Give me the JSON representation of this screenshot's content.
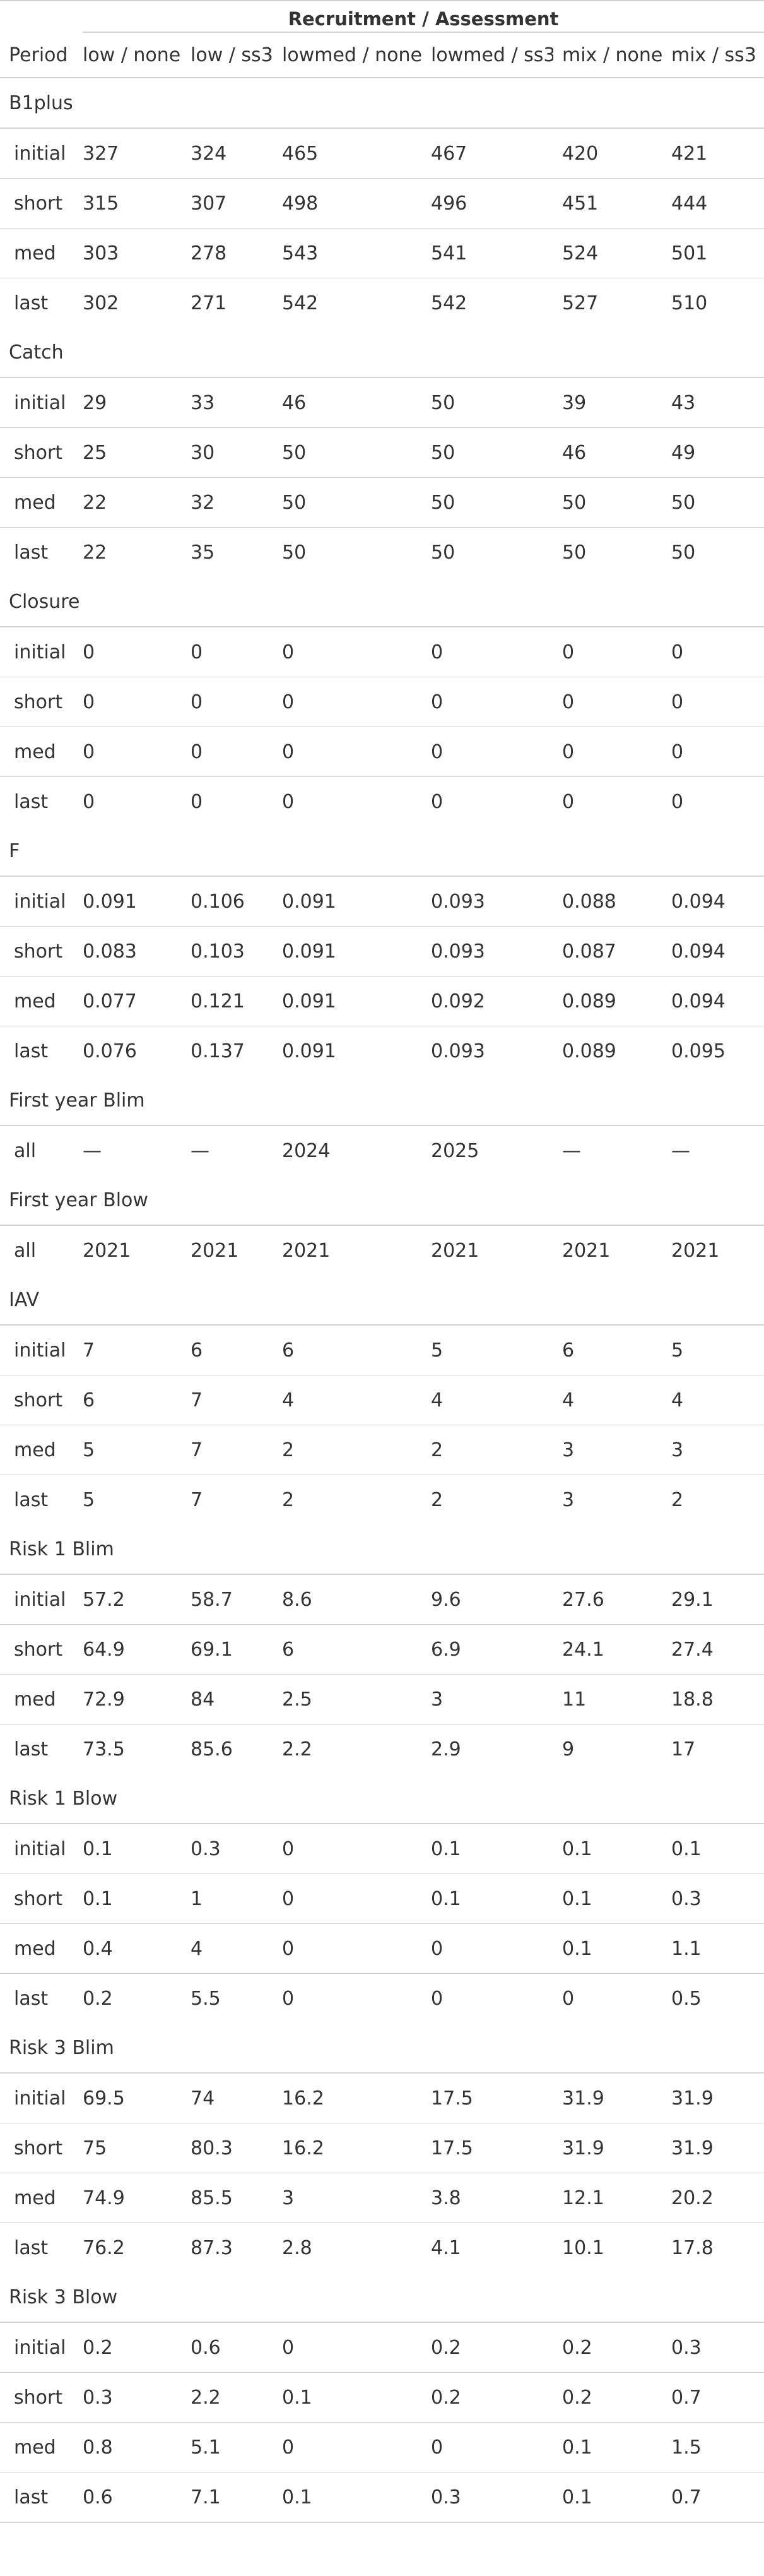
{
  "table": {
    "spanner": "Recruitment / Assessment",
    "columns": [
      "Period",
      "low / none",
      "low / ss3",
      "lowmed / none",
      "lowmed / ss3",
      "mix / none",
      "mix / ss3"
    ],
    "groups": [
      {
        "label": "B1plus",
        "rows": [
          [
            "initial",
            "327",
            "324",
            "465",
            "467",
            "420",
            "421"
          ],
          [
            "short",
            "315",
            "307",
            "498",
            "496",
            "451",
            "444"
          ],
          [
            "med",
            "303",
            "278",
            "543",
            "541",
            "524",
            "501"
          ],
          [
            "last",
            "302",
            "271",
            "542",
            "542",
            "527",
            "510"
          ]
        ]
      },
      {
        "label": "Catch",
        "rows": [
          [
            "initial",
            "29",
            "33",
            "46",
            "50",
            "39",
            "43"
          ],
          [
            "short",
            "25",
            "30",
            "50",
            "50",
            "46",
            "49"
          ],
          [
            "med",
            "22",
            "32",
            "50",
            "50",
            "50",
            "50"
          ],
          [
            "last",
            "22",
            "35",
            "50",
            "50",
            "50",
            "50"
          ]
        ]
      },
      {
        "label": "Closure",
        "rows": [
          [
            "initial",
            "0",
            "0",
            "0",
            "0",
            "0",
            "0"
          ],
          [
            "short",
            "0",
            "0",
            "0",
            "0",
            "0",
            "0"
          ],
          [
            "med",
            "0",
            "0",
            "0",
            "0",
            "0",
            "0"
          ],
          [
            "last",
            "0",
            "0",
            "0",
            "0",
            "0",
            "0"
          ]
        ]
      },
      {
        "label": "F",
        "rows": [
          [
            "initial",
            "0.091",
            "0.106",
            "0.091",
            "0.093",
            "0.088",
            "0.094"
          ],
          [
            "short",
            "0.083",
            "0.103",
            "0.091",
            "0.093",
            "0.087",
            "0.094"
          ],
          [
            "med",
            "0.077",
            "0.121",
            "0.091",
            "0.092",
            "0.089",
            "0.094"
          ],
          [
            "last",
            "0.076",
            "0.137",
            "0.091",
            "0.093",
            "0.089",
            "0.095"
          ]
        ]
      },
      {
        "label": "First year Blim",
        "rows": [
          [
            "all",
            "—",
            "—",
            "2024",
            "2025",
            "—",
            "—"
          ]
        ]
      },
      {
        "label": "First year Blow",
        "rows": [
          [
            "all",
            "2021",
            "2021",
            "2021",
            "2021",
            "2021",
            "2021"
          ]
        ]
      },
      {
        "label": "IAV",
        "rows": [
          [
            "initial",
            "7",
            "6",
            "6",
            "5",
            "6",
            "5"
          ],
          [
            "short",
            "6",
            "7",
            "4",
            "4",
            "4",
            "4"
          ],
          [
            "med",
            "5",
            "7",
            "2",
            "2",
            "3",
            "3"
          ],
          [
            "last",
            "5",
            "7",
            "2",
            "2",
            "3",
            "2"
          ]
        ]
      },
      {
        "label": "Risk 1 Blim",
        "rows": [
          [
            "initial",
            "57.2",
            "58.7",
            "8.6",
            "9.6",
            "27.6",
            "29.1"
          ],
          [
            "short",
            "64.9",
            "69.1",
            "6",
            "6.9",
            "24.1",
            "27.4"
          ],
          [
            "med",
            "72.9",
            "84",
            "2.5",
            "3",
            "11",
            "18.8"
          ],
          [
            "last",
            "73.5",
            "85.6",
            "2.2",
            "2.9",
            "9",
            "17"
          ]
        ]
      },
      {
        "label": "Risk 1 Blow",
        "rows": [
          [
            "initial",
            "0.1",
            "0.3",
            "0",
            "0.1",
            "0.1",
            "0.1"
          ],
          [
            "short",
            "0.1",
            "1",
            "0",
            "0.1",
            "0.1",
            "0.3"
          ],
          [
            "med",
            "0.4",
            "4",
            "0",
            "0",
            "0.1",
            "1.1"
          ],
          [
            "last",
            "0.2",
            "5.5",
            "0",
            "0",
            "0",
            "0.5"
          ]
        ]
      },
      {
        "label": "Risk 3 Blim",
        "rows": [
          [
            "initial",
            "69.5",
            "74",
            "16.2",
            "17.5",
            "31.9",
            "31.9"
          ],
          [
            "short",
            "75",
            "80.3",
            "16.2",
            "17.5",
            "31.9",
            "31.9"
          ],
          [
            "med",
            "74.9",
            "85.5",
            "3",
            "3.8",
            "12.1",
            "20.2"
          ],
          [
            "last",
            "76.2",
            "87.3",
            "2.8",
            "4.1",
            "10.1",
            "17.8"
          ]
        ]
      },
      {
        "label": "Risk 3 Blow",
        "rows": [
          [
            "initial",
            "0.2",
            "0.6",
            "0",
            "0.2",
            "0.2",
            "0.3"
          ],
          [
            "short",
            "0.3",
            "2.2",
            "0.1",
            "0.2",
            "0.2",
            "0.7"
          ],
          [
            "med",
            "0.8",
            "5.1",
            "0",
            "0",
            "0.1",
            "1.5"
          ],
          [
            "last",
            "0.6",
            "7.1",
            "0.1",
            "0.3",
            "0.1",
            "0.7"
          ]
        ]
      }
    ]
  }
}
